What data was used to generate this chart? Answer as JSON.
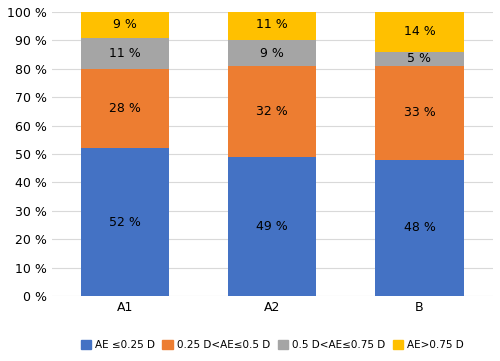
{
  "categories": [
    "A1",
    "A2",
    "B"
  ],
  "series": [
    {
      "label": "AE ≤0.25 D",
      "values": [
        52,
        49,
        48
      ],
      "color": "#4472C4"
    },
    {
      "label": "0.25 D<AE≤0.5 D",
      "values": [
        28,
        32,
        33
      ],
      "color": "#ED7D31"
    },
    {
      "label": "0.5 D<AE≤0.75 D",
      "values": [
        11,
        9,
        5
      ],
      "color": "#A5A5A5"
    },
    {
      "label": "AE>0.75 D",
      "values": [
        9,
        11,
        14
      ],
      "color": "#FFC000"
    }
  ],
  "ylim": [
    0,
    100
  ],
  "yticks": [
    0,
    10,
    20,
    30,
    40,
    50,
    60,
    70,
    80,
    90,
    100
  ],
  "ytick_labels": [
    "0 %",
    "10 %",
    "20 %",
    "30 %",
    "40 %",
    "50 %",
    "60 %",
    "70 %",
    "80 %",
    "90 %",
    "100 %"
  ],
  "bar_width": 0.6,
  "label_fontsize": 9,
  "legend_fontsize": 7.5,
  "tick_fontsize": 9,
  "background_color": "#FFFFFF",
  "grid_color": "#D9D9D9"
}
